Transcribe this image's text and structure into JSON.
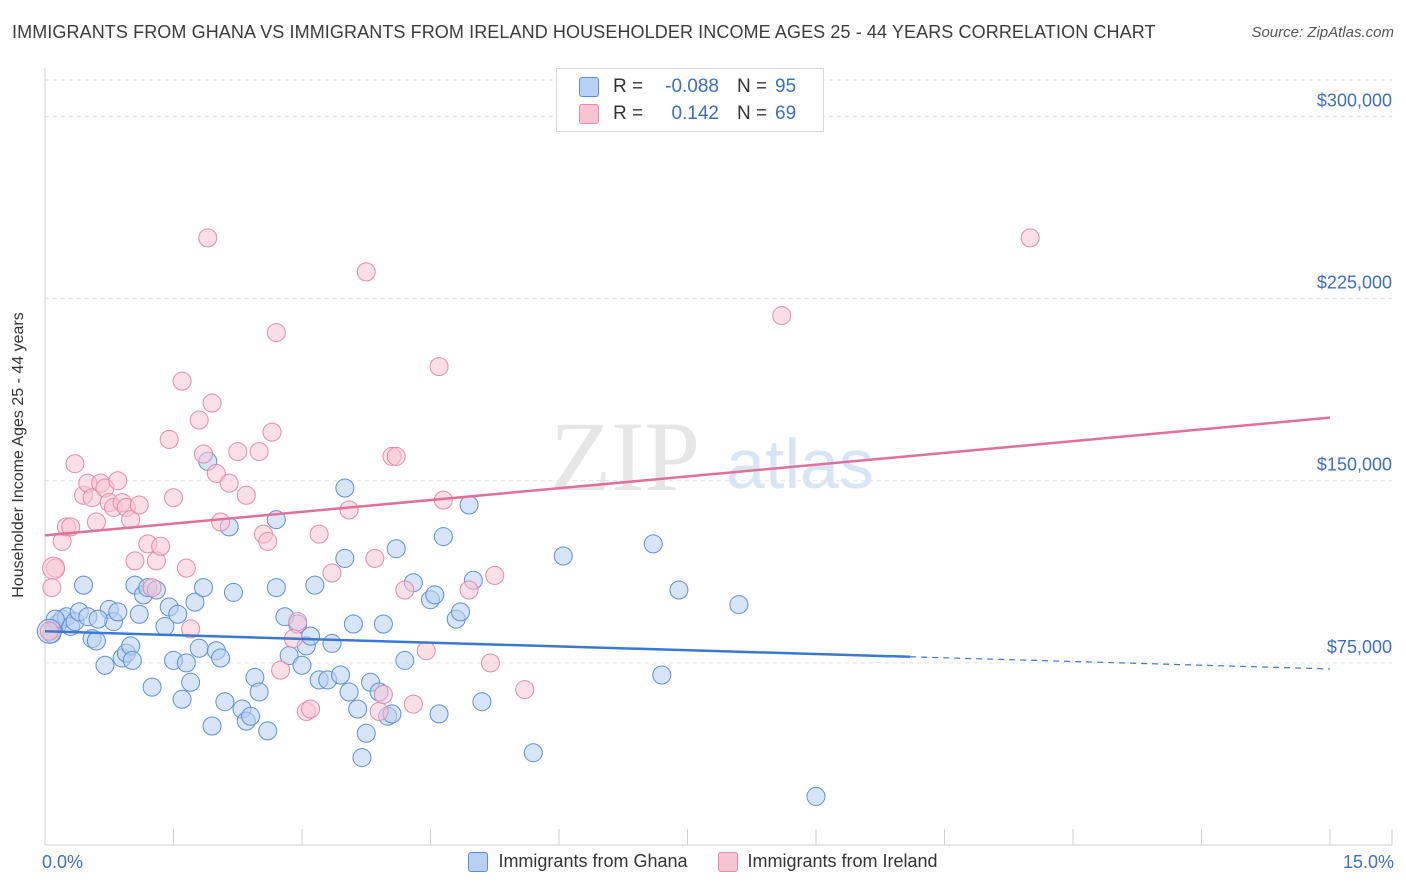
{
  "title": "IMMIGRANTS FROM GHANA VS IMMIGRANTS FROM IRELAND HOUSEHOLDER INCOME AGES 25 - 44 YEARS CORRELATION CHART",
  "source": "Source: ZipAtlas.com",
  "legend_top": [
    {
      "r_label": "R =",
      "r_value": "-0.088",
      "n_label": "N =",
      "n_value": "95"
    },
    {
      "r_label": "R =",
      "r_value": "0.142",
      "n_label": "N =",
      "n_value": "69"
    }
  ],
  "watermark": {
    "zip": "ZIP",
    "atlas": "atlas"
  },
  "colors": {
    "ghana_fill": "#b8d0f3",
    "ghana_stroke": "#5b8fd9",
    "ghana_line": "#3a78d4",
    "ireland_fill": "#f8c4d4",
    "ireland_stroke": "#e68aa8",
    "ireland_line": "#e0709a",
    "tick_text": "#3a6fc4"
  },
  "chart_data": {
    "type": "scatter",
    "title": "IMMIGRANTS FROM GHANA VS IMMIGRANTS FROM IRELAND HOUSEHOLDER INCOME AGES 25 - 44 YEARS CORRELATION CHART",
    "xlabel": "",
    "ylabel": "Householder Income Ages 25 - 44 years",
    "xlim": [
      0,
      15
    ],
    "ylim": [
      0,
      315000
    ],
    "x_tick_labels": [
      "0.0%",
      "15.0%"
    ],
    "y_ticks": [
      75000,
      150000,
      225000,
      300000
    ],
    "y_tick_labels": [
      "$75,000",
      "$150,000",
      "$225,000",
      "$300,000"
    ],
    "grid": true,
    "legend_position": "bottom-center",
    "series": [
      {
        "name": "Immigrants from Ghana",
        "r": -0.088,
        "n": 95,
        "trend": {
          "x0": 0,
          "y0": 88000,
          "x1": 10.1,
          "y1": 77500,
          "dashed_to_x": 15,
          "dashed_to_y": 72500
        },
        "points": [
          [
            0.1,
            89000
          ],
          [
            0.15,
            91000
          ],
          [
            0.2,
            93000
          ],
          [
            0.25,
            94000
          ],
          [
            0.3,
            90000
          ],
          [
            0.35,
            92000
          ],
          [
            0.4,
            96000
          ],
          [
            0.45,
            107000
          ],
          [
            0.5,
            94000
          ],
          [
            0.55,
            85000
          ],
          [
            0.6,
            84000
          ],
          [
            0.7,
            74000
          ],
          [
            0.75,
            97000
          ],
          [
            0.8,
            92000
          ],
          [
            0.85,
            96000
          ],
          [
            0.9,
            77000
          ],
          [
            0.95,
            79000
          ],
          [
            1.0,
            82000
          ],
          [
            1.05,
            107000
          ],
          [
            1.1,
            95000
          ],
          [
            1.15,
            103000
          ],
          [
            1.2,
            106000
          ],
          [
            1.25,
            65000
          ],
          [
            1.3,
            105000
          ],
          [
            1.4,
            90000
          ],
          [
            1.45,
            98000
          ],
          [
            1.5,
            76000
          ],
          [
            1.55,
            95000
          ],
          [
            1.6,
            60000
          ],
          [
            1.65,
            75000
          ],
          [
            1.7,
            67000
          ],
          [
            1.75,
            100000
          ],
          [
            1.8,
            81000
          ],
          [
            1.85,
            106000
          ],
          [
            1.9,
            158000
          ],
          [
            1.95,
            49000
          ],
          [
            2.0,
            80000
          ],
          [
            2.05,
            77000
          ],
          [
            2.1,
            59000
          ],
          [
            2.15,
            131000
          ],
          [
            2.2,
            104000
          ],
          [
            2.3,
            56000
          ],
          [
            2.35,
            51000
          ],
          [
            2.4,
            53000
          ],
          [
            2.45,
            69000
          ],
          [
            2.5,
            63000
          ],
          [
            2.6,
            47000
          ],
          [
            2.7,
            106000
          ],
          [
            2.7,
            134000
          ],
          [
            2.8,
            94000
          ],
          [
            2.85,
            78000
          ],
          [
            2.95,
            91000
          ],
          [
            3.0,
            74000
          ],
          [
            3.05,
            82000
          ],
          [
            3.1,
            86000
          ],
          [
            3.15,
            107000
          ],
          [
            3.2,
            68000
          ],
          [
            3.3,
            68000
          ],
          [
            3.35,
            83000
          ],
          [
            3.45,
            70000
          ],
          [
            3.5,
            147000
          ],
          [
            3.5,
            118000
          ],
          [
            3.55,
            63000
          ],
          [
            3.6,
            91000
          ],
          [
            3.65,
            56000
          ],
          [
            3.7,
            36000
          ],
          [
            3.75,
            46000
          ],
          [
            3.8,
            67000
          ],
          [
            3.9,
            63000
          ],
          [
            3.95,
            91000
          ],
          [
            4.0,
            53000
          ],
          [
            4.05,
            54000
          ],
          [
            4.1,
            122000
          ],
          [
            4.2,
            76000
          ],
          [
            4.3,
            108000
          ],
          [
            4.5,
            101000
          ],
          [
            4.55,
            103000
          ],
          [
            4.6,
            54000
          ],
          [
            4.65,
            127000
          ],
          [
            4.8,
            93000
          ],
          [
            4.85,
            96000
          ],
          [
            4.95,
            140000
          ],
          [
            5.0,
            109000
          ],
          [
            5.1,
            59000
          ],
          [
            5.7,
            38000
          ],
          [
            6.05,
            119000
          ],
          [
            7.1,
            124000
          ],
          [
            7.2,
            70000
          ],
          [
            7.4,
            105000
          ],
          [
            8.1,
            99000
          ],
          [
            9.0,
            20000
          ],
          [
            0.08,
            87000
          ],
          [
            0.12,
            93000
          ],
          [
            0.62,
            93000
          ],
          [
            1.02,
            76000
          ]
        ]
      },
      {
        "name": "Immigrants from Ireland",
        "r": 0.142,
        "n": 69,
        "trend": {
          "x0": 0,
          "y0": 127500,
          "x1": 15,
          "y1": 176000
        },
        "points": [
          [
            0.05,
            88000
          ],
          [
            0.08,
            106000
          ],
          [
            0.12,
            114000
          ],
          [
            0.2,
            125000
          ],
          [
            0.25,
            131000
          ],
          [
            0.3,
            131000
          ],
          [
            0.35,
            157000
          ],
          [
            0.45,
            144000
          ],
          [
            0.5,
            149000
          ],
          [
            0.55,
            143000
          ],
          [
            0.6,
            133000
          ],
          [
            0.65,
            149000
          ],
          [
            0.7,
            147000
          ],
          [
            0.75,
            141000
          ],
          [
            0.8,
            139000
          ],
          [
            0.85,
            150000
          ],
          [
            0.9,
            141000
          ],
          [
            0.95,
            139000
          ],
          [
            1.0,
            134000
          ],
          [
            1.05,
            117000
          ],
          [
            1.1,
            140000
          ],
          [
            1.2,
            124000
          ],
          [
            1.25,
            106000
          ],
          [
            1.3,
            117000
          ],
          [
            1.35,
            123000
          ],
          [
            1.45,
            167000
          ],
          [
            1.5,
            143000
          ],
          [
            1.6,
            191000
          ],
          [
            1.65,
            114000
          ],
          [
            1.7,
            89000
          ],
          [
            1.8,
            175000
          ],
          [
            1.85,
            161000
          ],
          [
            1.9,
            250000
          ],
          [
            1.95,
            182000
          ],
          [
            2.0,
            153000
          ],
          [
            2.05,
            133000
          ],
          [
            2.15,
            149000
          ],
          [
            2.25,
            162000
          ],
          [
            2.35,
            144000
          ],
          [
            2.5,
            162000
          ],
          [
            2.55,
            128000
          ],
          [
            2.6,
            125000
          ],
          [
            2.65,
            170000
          ],
          [
            2.7,
            211000
          ],
          [
            2.75,
            72000
          ],
          [
            2.9,
            85000
          ],
          [
            2.95,
            92000
          ],
          [
            3.05,
            55000
          ],
          [
            3.2,
            128000
          ],
          [
            3.35,
            112000
          ],
          [
            3.55,
            138000
          ],
          [
            3.75,
            236000
          ],
          [
            3.85,
            118000
          ],
          [
            3.9,
            55000
          ],
          [
            3.95,
            62000
          ],
          [
            4.05,
            160000
          ],
          [
            4.1,
            160000
          ],
          [
            4.2,
            105000
          ],
          [
            4.3,
            58000
          ],
          [
            4.45,
            80000
          ],
          [
            4.6,
            197000
          ],
          [
            4.65,
            142000
          ],
          [
            4.95,
            105000
          ],
          [
            5.2,
            75000
          ],
          [
            5.25,
            111000
          ],
          [
            5.6,
            64000
          ],
          [
            8.6,
            218000
          ],
          [
            11.5,
            250000
          ],
          [
            3.1,
            56000
          ]
        ]
      }
    ]
  },
  "x_axis": {
    "left_label": "0.0%",
    "right_label": "15.0%"
  },
  "y_axis_title": "Householder Income Ages 25 - 44 years"
}
